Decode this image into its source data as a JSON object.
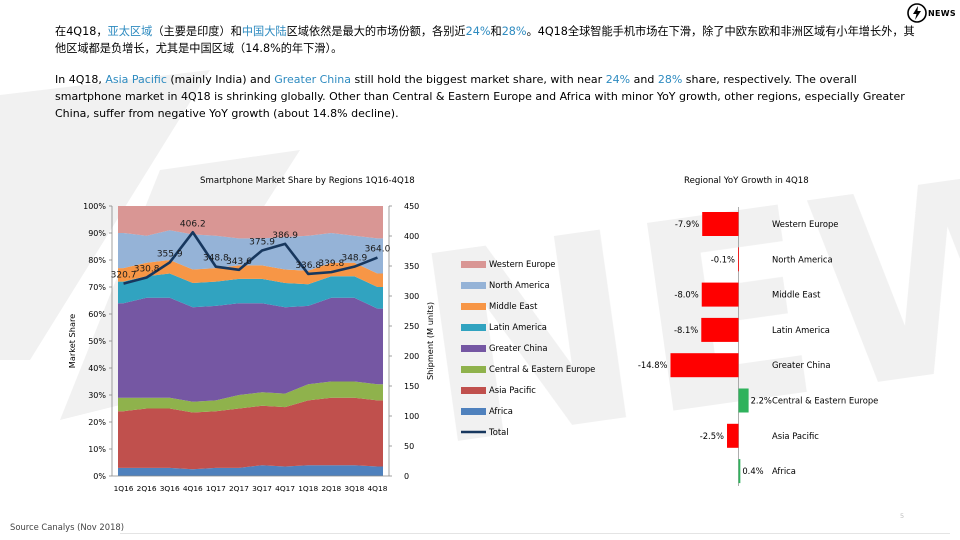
{
  "text": {
    "zh_parts": [
      "在4Q18，",
      "亚太区域",
      "（主要是印度）和",
      "中国大陆",
      "区域依然是最大的市场份额，各别近",
      "24%",
      "和",
      "28%",
      "。4Q18全球智能手机市场在下滑，除了中欧东欧和非洲区域有小年增长外，其他区域都是负增长，尤其是中国区域（14.8%的年下滑）。"
    ],
    "en_parts": [
      "In 4Q18, ",
      "Asia Pacific",
      " (mainly India) and ",
      "Greater China",
      " still hold the biggest market share, with near ",
      "24%",
      " and ",
      "28%",
      " share, respectively. The overall smartphone market in 4Q18 is shrinking globally. Other than Central & Eastern Europe and Africa with minor YoY growth, other regions, especially Greater China, suffer from negative YoY growth (about 14.8% decline)."
    ],
    "source": "Source Canalys (Nov 2018)",
    "page": "5",
    "logo": "NEWS"
  },
  "colors": {
    "highlight": "#2e8bc0",
    "western_europe": "#d99694",
    "north_america": "#95b3d7",
    "middle_east": "#f79646",
    "latin_america": "#31a3c0",
    "greater_china": "#7557a3",
    "central_eastern_europe": "#8fb24c",
    "asia_pacific": "#c0504d",
    "africa": "#4f81bd",
    "total": "#17375e",
    "neg_bar": "#ff0000",
    "pos_bar": "#2fb25c"
  },
  "chart_data": [
    {
      "type": "area",
      "title": "Smartphone Market Share by Regions 1Q16-4Q18",
      "xlabel": "",
      "ylabel": "Market Share",
      "y2label": "Shipment (M units)",
      "categories": [
        "1Q16",
        "2Q16",
        "3Q16",
        "4Q16",
        "1Q17",
        "2Q17",
        "3Q17",
        "4Q17",
        "1Q18",
        "2Q18",
        "3Q18",
        "4Q18"
      ],
      "ylim": [
        0,
        100
      ],
      "y2lim": [
        0,
        450
      ],
      "yticks": [
        "0%",
        "10%",
        "20%",
        "30%",
        "40%",
        "50%",
        "60%",
        "70%",
        "80%",
        "90%",
        "100%"
      ],
      "y2ticks": [
        "0",
        "50",
        "100",
        "150",
        "200",
        "250",
        "300",
        "350",
        "400",
        "450"
      ],
      "stacked": true,
      "series": [
        {
          "name": "Africa",
          "values": [
            3,
            3,
            3,
            2.5,
            3,
            3,
            4,
            3.5,
            4,
            4,
            4,
            3.5
          ]
        },
        {
          "name": "Asia Pacific",
          "values": [
            21,
            22,
            22,
            21,
            21,
            22,
            22,
            22,
            24,
            25,
            25,
            24.5
          ]
        },
        {
          "name": "Central & Eastern Europe",
          "values": [
            5,
            4,
            4,
            4,
            4,
            5,
            5,
            5,
            6,
            6,
            6,
            6
          ]
        },
        {
          "name": "Greater China",
          "values": [
            35,
            37,
            37,
            35,
            35,
            34,
            33,
            32,
            29,
            31,
            31,
            28
          ]
        },
        {
          "name": "Latin America",
          "values": [
            8,
            8,
            9,
            9,
            9,
            9,
            9,
            9,
            8,
            8,
            8,
            8
          ]
        },
        {
          "name": "Middle East",
          "values": [
            5,
            5,
            5,
            5,
            5,
            5,
            5,
            5,
            5,
            5,
            5,
            5
          ]
        },
        {
          "name": "North America",
          "values": [
            13,
            10,
            11,
            13,
            12,
            10,
            10,
            12,
            13,
            11,
            10,
            13
          ]
        },
        {
          "name": "Western Europe",
          "values": [
            10,
            11,
            9,
            10.5,
            11,
            12,
            12,
            11.5,
            11,
            10,
            11,
            12
          ]
        }
      ],
      "line": {
        "name": "Total",
        "values": [
          320.7,
          330.8,
          355.9,
          406.2,
          348.8,
          343.6,
          375.9,
          386.9,
          336.8,
          339.8,
          348.9,
          364.0
        ]
      },
      "line_labels": [
        "320.7",
        "330.8",
        "355.9",
        "406.2",
        "348.8",
        "343.6",
        "375.9",
        "386.9",
        "336.8",
        "339.8",
        "348.9",
        "364.0"
      ],
      "legend": [
        "Western Europe",
        "North America",
        "Middle East",
        "Latin America",
        "Greater China",
        "Central & Eastern Europe",
        "Asia Pacific",
        "Africa",
        "Total"
      ],
      "legend_position": "right",
      "grid": false
    },
    {
      "type": "bar",
      "orientation": "horizontal",
      "title": "Regional YoY Growth in 4Q18",
      "categories": [
        "Western Europe",
        "North America",
        "Middle East",
        "Latin America",
        "Greater China",
        "Central & Eastern Europe",
        "Asia Pacific",
        "Africa"
      ],
      "values": [
        -7.9,
        -0.1,
        -8.0,
        -8.1,
        -14.8,
        2.2,
        -2.5,
        0.4
      ],
      "labels": [
        "-7.9%",
        "-0.1%",
        "-8.0%",
        "-8.1%",
        "-14.8%",
        "2.2%",
        "-2.5%",
        "0.4%"
      ],
      "grid": false
    }
  ]
}
